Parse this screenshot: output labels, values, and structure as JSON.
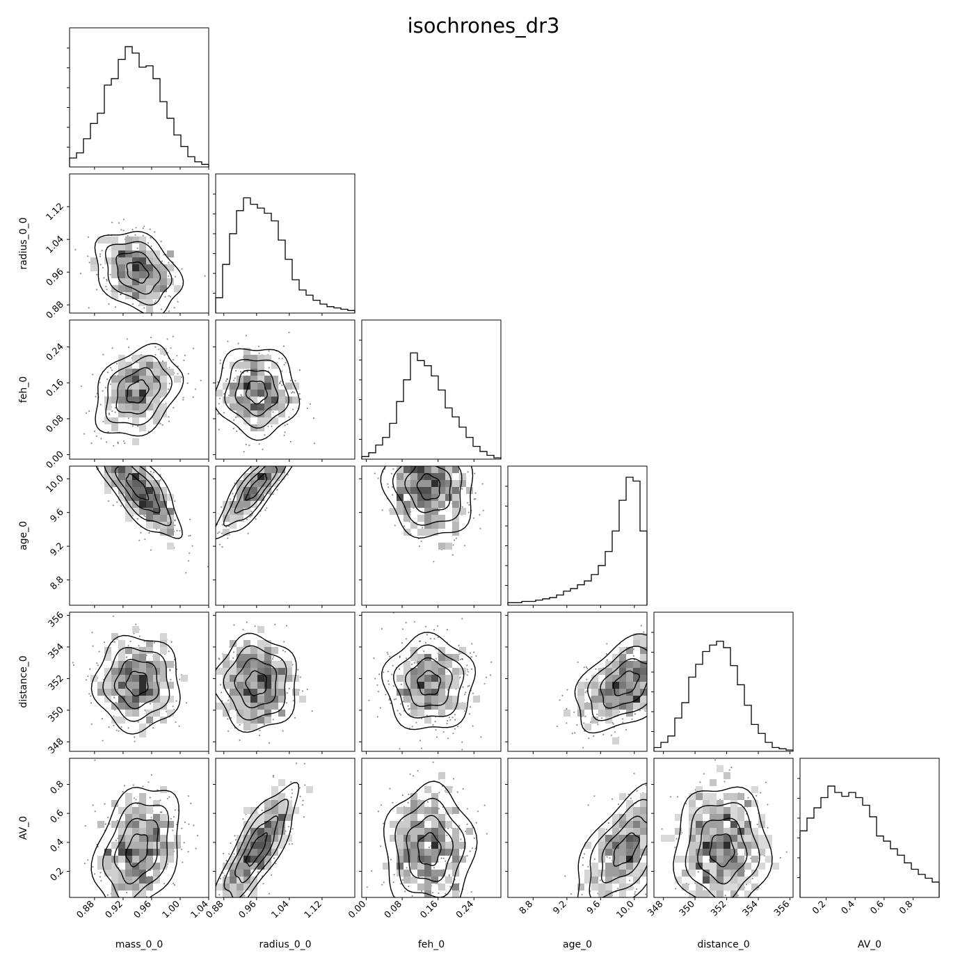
{
  "title": "isochrones_dr3",
  "chart_data": {
    "type": "corner",
    "title": "isochrones_dr3",
    "parameters": [
      {
        "name": "mass_0_0",
        "range": [
          0.845,
          1.04
        ],
        "ticks": [
          0.88,
          0.92,
          0.96,
          1.0,
          1.04
        ],
        "tick_labels": [
          "0.88",
          "0.92",
          "0.96",
          "1.00",
          "1.04"
        ],
        "histogram": [
          0.07,
          0.11,
          0.22,
          0.34,
          0.42,
          0.64,
          0.69,
          0.84,
          0.94,
          0.89,
          0.78,
          0.79,
          0.69,
          0.51,
          0.38,
          0.25,
          0.16,
          0.08,
          0.04,
          0.02
        ],
        "mean": 0.94,
        "sd": 0.03
      },
      {
        "name": "radius_0_0",
        "range": [
          0.86,
          1.2
        ],
        "ticks": [
          0.88,
          0.96,
          1.04,
          1.12
        ],
        "tick_labels": [
          "0.88",
          "0.96",
          "1.04",
          "1.12"
        ],
        "histogram": [
          0.12,
          0.38,
          0.62,
          0.8,
          0.9,
          0.85,
          0.82,
          0.78,
          0.72,
          0.57,
          0.42,
          0.26,
          0.18,
          0.14,
          0.1,
          0.07,
          0.05,
          0.04,
          0.03,
          0.02
        ],
        "mean": 0.96,
        "sd": 0.05
      },
      {
        "name": "feh_0",
        "range": [
          -0.01,
          0.3
        ],
        "ticks": [
          0.0,
          0.08,
          0.16,
          0.24
        ],
        "tick_labels": [
          "0.00",
          "0.08",
          "0.16",
          "0.24"
        ],
        "histogram": [
          0.02,
          0.05,
          0.11,
          0.17,
          0.28,
          0.45,
          0.62,
          0.83,
          0.77,
          0.73,
          0.65,
          0.54,
          0.4,
          0.33,
          0.25,
          0.17,
          0.1,
          0.06,
          0.03,
          0.01
        ],
        "mean": 0.14,
        "sd": 0.05
      },
      {
        "name": "age_0",
        "range": [
          8.5,
          10.15
        ],
        "ticks": [
          8.8,
          9.2,
          9.6,
          10.0
        ],
        "tick_labels": [
          "8.8",
          "9.2",
          "9.6",
          "10.0"
        ],
        "histogram": [
          0.02,
          0.02,
          0.03,
          0.03,
          0.04,
          0.05,
          0.06,
          0.08,
          0.11,
          0.13,
          0.16,
          0.19,
          0.24,
          0.31,
          0.42,
          0.58,
          0.82,
          1.0,
          0.97,
          0.58
        ],
        "mean": 9.9,
        "sd": 0.3
      },
      {
        "name": "distance_0",
        "range": [
          347.4,
          356.2
        ],
        "ticks": [
          348,
          350,
          352,
          354,
          356
        ],
        "tick_labels": [
          "348",
          "350",
          "352",
          "354",
          "356"
        ],
        "histogram": [
          0.03,
          0.07,
          0.12,
          0.26,
          0.38,
          0.58,
          0.68,
          0.78,
          0.83,
          0.86,
          0.81,
          0.67,
          0.52,
          0.36,
          0.21,
          0.14,
          0.07,
          0.03,
          0.02,
          0.01
        ],
        "mean": 351.7,
        "sd": 1.5
      },
      {
        "name": "AV_0",
        "range": [
          0.02,
          0.98
        ],
        "ticks": [
          0.2,
          0.4,
          0.6,
          0.8
        ],
        "tick_labels": [
          "0.2",
          "0.4",
          "0.6",
          "0.8"
        ],
        "histogram": [
          0.52,
          0.62,
          0.7,
          0.78,
          0.87,
          0.82,
          0.79,
          0.82,
          0.78,
          0.72,
          0.63,
          0.48,
          0.44,
          0.38,
          0.33,
          0.27,
          0.22,
          0.18,
          0.15,
          0.12
        ],
        "mean": 0.35,
        "sd": 0.22
      }
    ],
    "correlations": [
      [
        1,
        -0.3,
        0.3,
        -0.75,
        0.0,
        0.3
      ],
      [
        -0.3,
        1,
        -0.05,
        0.85,
        0.0,
        0.8
      ],
      [
        0.3,
        -0.05,
        1,
        -0.1,
        0.0,
        0.0
      ],
      [
        -0.75,
        0.85,
        -0.1,
        1,
        0.45,
        0.6
      ],
      [
        0.0,
        0.0,
        0.0,
        0.45,
        1,
        0.0
      ],
      [
        0.3,
        0.8,
        0.0,
        0.6,
        0.0,
        1
      ]
    ],
    "colors": {
      "ink": "#000000",
      "hist_line": "#000000",
      "scatter": "#000000",
      "grid": false
    }
  }
}
